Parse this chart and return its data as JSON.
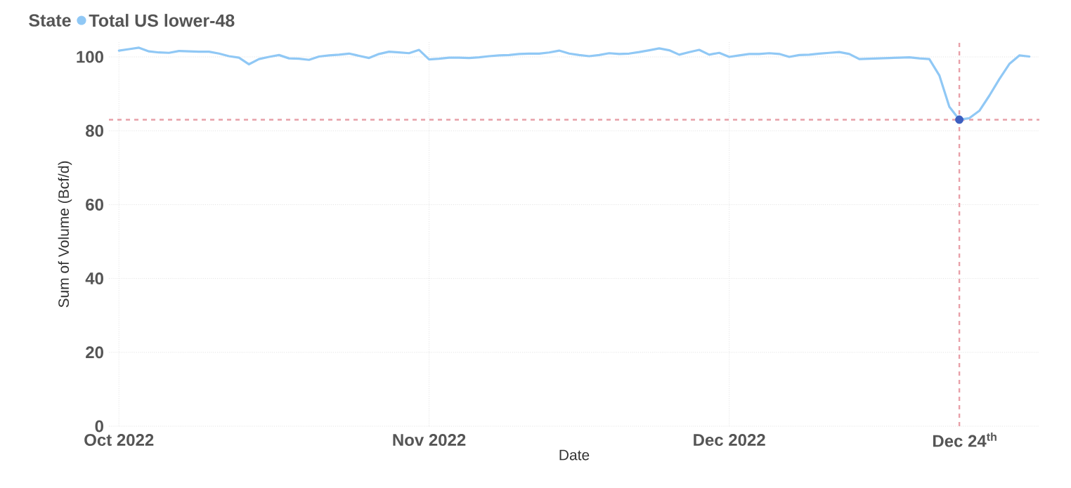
{
  "chart_data": {
    "type": "line",
    "xlabel": "Date",
    "ylabel": "Sum of Volume (Bcf/d)",
    "legend_title": "State",
    "legend": "top left",
    "grid": true,
    "line_style": "solid",
    "xlim": [
      "2022-09-30",
      "2023-01-01"
    ],
    "ylim": [
      0,
      104
    ],
    "yticks": [
      0,
      20,
      40,
      60,
      80,
      100
    ],
    "xticks": [
      {
        "value": "2022-10-01",
        "label": "Oct 2022"
      },
      {
        "value": "2022-11-01",
        "label": "Nov 2022"
      },
      {
        "value": "2022-12-01",
        "label": "Dec 2022"
      }
    ],
    "x": [
      "2022-10-01",
      "2022-10-02",
      "2022-10-03",
      "2022-10-04",
      "2022-10-05",
      "2022-10-06",
      "2022-10-07",
      "2022-10-08",
      "2022-10-09",
      "2022-10-10",
      "2022-10-11",
      "2022-10-12",
      "2022-10-13",
      "2022-10-14",
      "2022-10-15",
      "2022-10-16",
      "2022-10-17",
      "2022-10-18",
      "2022-10-19",
      "2022-10-20",
      "2022-10-21",
      "2022-10-22",
      "2022-10-23",
      "2022-10-24",
      "2022-10-25",
      "2022-10-26",
      "2022-10-27",
      "2022-10-28",
      "2022-10-29",
      "2022-10-30",
      "2022-10-31",
      "2022-11-01",
      "2022-11-02",
      "2022-11-03",
      "2022-11-04",
      "2022-11-05",
      "2022-11-06",
      "2022-11-07",
      "2022-11-08",
      "2022-11-09",
      "2022-11-10",
      "2022-11-11",
      "2022-11-12",
      "2022-11-13",
      "2022-11-14",
      "2022-11-15",
      "2022-11-16",
      "2022-11-17",
      "2022-11-18",
      "2022-11-19",
      "2022-11-20",
      "2022-11-21",
      "2022-11-22",
      "2022-11-23",
      "2022-11-24",
      "2022-11-25",
      "2022-11-26",
      "2022-11-27",
      "2022-11-28",
      "2022-11-29",
      "2022-11-30",
      "2022-12-01",
      "2022-12-02",
      "2022-12-03",
      "2022-12-04",
      "2022-12-05",
      "2022-12-06",
      "2022-12-07",
      "2022-12-08",
      "2022-12-09",
      "2022-12-10",
      "2022-12-11",
      "2022-12-12",
      "2022-12-13",
      "2022-12-14",
      "2022-12-15",
      "2022-12-16",
      "2022-12-17",
      "2022-12-18",
      "2022-12-19",
      "2022-12-20",
      "2022-12-21",
      "2022-12-22",
      "2022-12-23",
      "2022-12-24",
      "2022-12-25",
      "2022-12-26",
      "2022-12-27",
      "2022-12-28",
      "2022-12-29",
      "2022-12-30",
      "2022-12-31"
    ],
    "series": [
      {
        "name": "Total US lower-48",
        "color": "#90c8f5",
        "values": [
          101.7,
          102.1,
          102.5,
          101.5,
          101.2,
          101.1,
          101.6,
          101.5,
          101.4,
          101.4,
          100.9,
          100.2,
          99.8,
          98.0,
          99.4,
          100.0,
          100.5,
          99.6,
          99.5,
          99.2,
          100.1,
          100.4,
          100.6,
          100.9,
          100.3,
          99.7,
          100.8,
          101.4,
          101.2,
          101.0,
          101.9,
          99.3,
          99.5,
          99.8,
          99.8,
          99.7,
          99.9,
          100.2,
          100.4,
          100.5,
          100.8,
          100.9,
          100.9,
          101.2,
          101.7,
          100.9,
          100.5,
          100.2,
          100.5,
          101.0,
          100.8,
          100.9,
          101.3,
          101.8,
          102.3,
          101.8,
          100.6,
          101.3,
          101.9,
          100.6,
          101.1,
          100.0,
          100.4,
          100.8,
          100.8,
          101.0,
          100.8,
          100.0,
          100.5,
          100.6,
          100.9,
          101.1,
          101.3,
          100.8,
          99.4,
          99.5,
          99.6,
          99.7,
          99.8,
          99.9,
          99.6,
          99.4,
          95.0,
          86.5,
          83.0,
          83.4,
          85.4,
          89.5,
          94.0,
          98.1,
          100.4,
          100.1
        ]
      },
      {
        "type": "scatter",
        "color": "#3d5fc0",
        "x": [
          "2022-12-24"
        ],
        "values": [
          83.0
        ]
      }
    ],
    "ref_lines": [
      {
        "axis": "y",
        "value": 83,
        "color": "#e8a0a8",
        "line_style": "dashed"
      },
      {
        "axis": "x",
        "value": "2022-12-24",
        "label": "Dec 24$^{th}$",
        "color": "#e8a0a8",
        "line_style": "dashed"
      }
    ]
  }
}
